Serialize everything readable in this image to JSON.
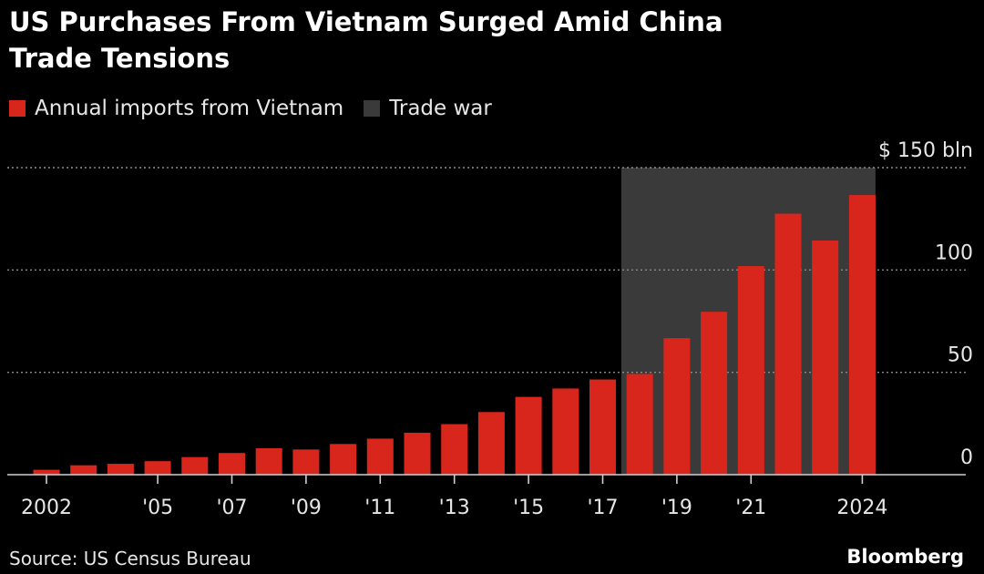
{
  "header": {
    "title_line1": "US Purchases From Vietnam Surged Amid China",
    "title_line2": "Trade Tensions"
  },
  "legend": {
    "series_label": "Annual imports from Vietnam",
    "band_label": "Trade war"
  },
  "footer": {
    "source": "Source: US Census Bureau",
    "brand": "Bloomberg"
  },
  "colors": {
    "bar": "#d9261c",
    "band": "#3a3a3a",
    "background": "#000000",
    "grid": "#8a8a8a"
  },
  "chart_data": {
    "type": "bar",
    "categories": [
      "2002",
      "2003",
      "2004",
      "2005",
      "2006",
      "2007",
      "2008",
      "2009",
      "2010",
      "2011",
      "2012",
      "2013",
      "2014",
      "2015",
      "2016",
      "2017",
      "2018",
      "2019",
      "2020",
      "2021",
      "2022",
      "2023",
      "2024"
    ],
    "series": [
      {
        "name": "Annual imports from Vietnam",
        "values": [
          2.4,
          4.6,
          5.3,
          6.6,
          8.6,
          10.6,
          12.9,
          12.3,
          15.0,
          17.6,
          20.5,
          24.7,
          30.6,
          38.0,
          42.1,
          46.5,
          49.2,
          66.7,
          79.6,
          101.9,
          127.5,
          114.4,
          136.6
        ]
      }
    ],
    "shaded_band": {
      "label": "Trade war",
      "from": "2018",
      "to": "2024"
    },
    "x_tick_labels": [
      {
        "at": "2002",
        "label": "2002"
      },
      {
        "at": "2005",
        "label": "'05"
      },
      {
        "at": "2007",
        "label": "'07"
      },
      {
        "at": "2009",
        "label": "'09"
      },
      {
        "at": "2011",
        "label": "'11"
      },
      {
        "at": "2013",
        "label": "'13"
      },
      {
        "at": "2015",
        "label": "'15"
      },
      {
        "at": "2017",
        "label": "'17"
      },
      {
        "at": "2019",
        "label": "'19"
      },
      {
        "at": "2021",
        "label": "'21"
      },
      {
        "at": "2024",
        "label": "2024"
      }
    ],
    "y_ticks": [
      {
        "value": 0,
        "label": "0"
      },
      {
        "value": 50,
        "label": "50"
      },
      {
        "value": 100,
        "label": "100"
      },
      {
        "value": 150,
        "label": "$ 150 bln"
      }
    ],
    "ylim": [
      0,
      150
    ],
    "grid": true,
    "xlabel": "",
    "ylabel": ""
  }
}
